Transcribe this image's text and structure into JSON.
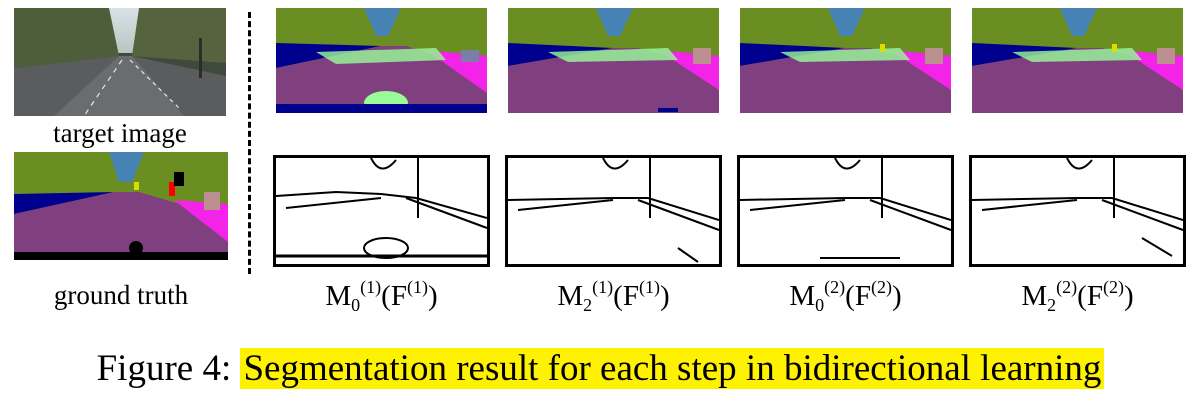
{
  "figure": {
    "left_labels": {
      "target": "target image",
      "ground_truth": "ground truth"
    },
    "columns": [
      {
        "base": "M",
        "sub": "0",
        "sup": "(1)",
        "arg_base": "F",
        "arg_sup": "(1)"
      },
      {
        "base": "M",
        "sub": "2",
        "sup": "(1)",
        "arg_base": "F",
        "arg_sup": "(1)"
      },
      {
        "base": "M",
        "sub": "0",
        "sup": "(2)",
        "arg_base": "F",
        "arg_sup": "(2)"
      },
      {
        "base": "M",
        "sub": "2",
        "sup": "(2)",
        "arg_base": "F",
        "arg_sup": "(2)"
      }
    ],
    "caption": {
      "prefix": "Figure 4:",
      "text": "Segmentation result for each step in bidirectional learning",
      "highlight_color": "#fff200"
    }
  },
  "colors": {
    "vegetation": "#6b8e23",
    "sky": "#4682b4",
    "road": "#80407f",
    "sidewalk": "#f423e8",
    "car": "#00008e",
    "building": "#464646",
    "terrain": "#98fb98",
    "wall": "#bc8f8f"
  }
}
